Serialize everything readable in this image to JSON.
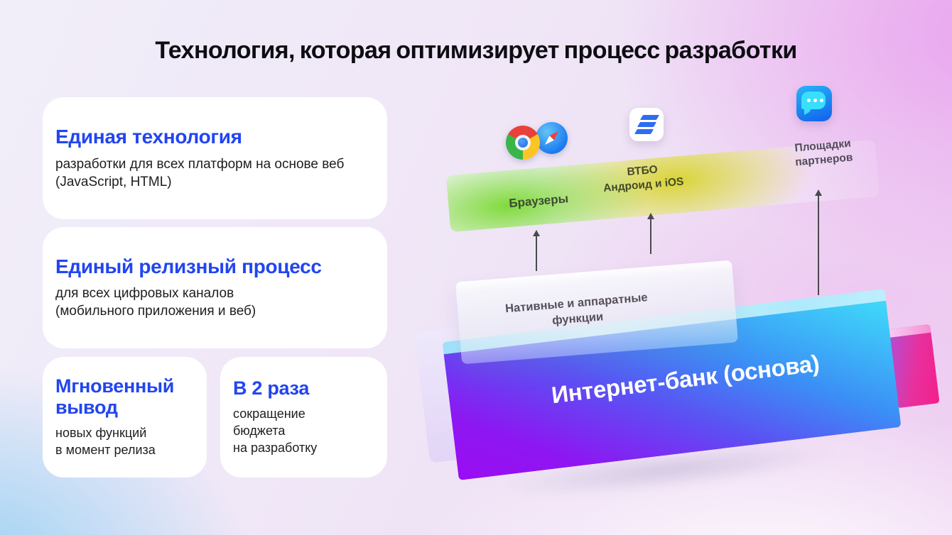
{
  "title": "Технология, которая оптимизирует процесс разработки",
  "cards": [
    {
      "heading": "Единая технология",
      "body": "разработки для всех платформ на основе веб\n(JavaScript, HTML)"
    },
    {
      "heading": "Единый релизный процесс",
      "body": "для всех цифровых каналов\n(мобильного приложения и веб)"
    },
    {
      "heading": "Мгновенный вывод",
      "body": "новых функций\nв момент релиза"
    },
    {
      "heading": "В 2 раза",
      "body": "сокращение\nбюджета\nна разработку"
    }
  ],
  "diagram": {
    "platforms": [
      {
        "label": "Браузеры",
        "icons": [
          "chrome-icon",
          "safari-icon"
        ]
      },
      {
        "label": "ВТБО\nАндроид и iOS",
        "icons": [
          "vtbo-app-icon"
        ]
      },
      {
        "label": "Площадки\nпартнеров",
        "icons": [
          "chat-icon"
        ]
      }
    ],
    "native_layer": {
      "label": "Нативные и аппаратные\nфункции"
    },
    "base_layer": {
      "label": "Интернет-банк (основа)"
    }
  },
  "colors": {
    "accent_blue": "#2245f0",
    "title_color": "#0d0d12",
    "glow_green": "#7cd936",
    "glow_yellow": "#d6d21e",
    "base_cyan": "#3fd6f9",
    "base_purple": "#8e16f2",
    "pink_block": "#f41f8b",
    "bg_pink_corner": "#ecb9ee",
    "bg_blue_corner": "#a9ddf4"
  }
}
